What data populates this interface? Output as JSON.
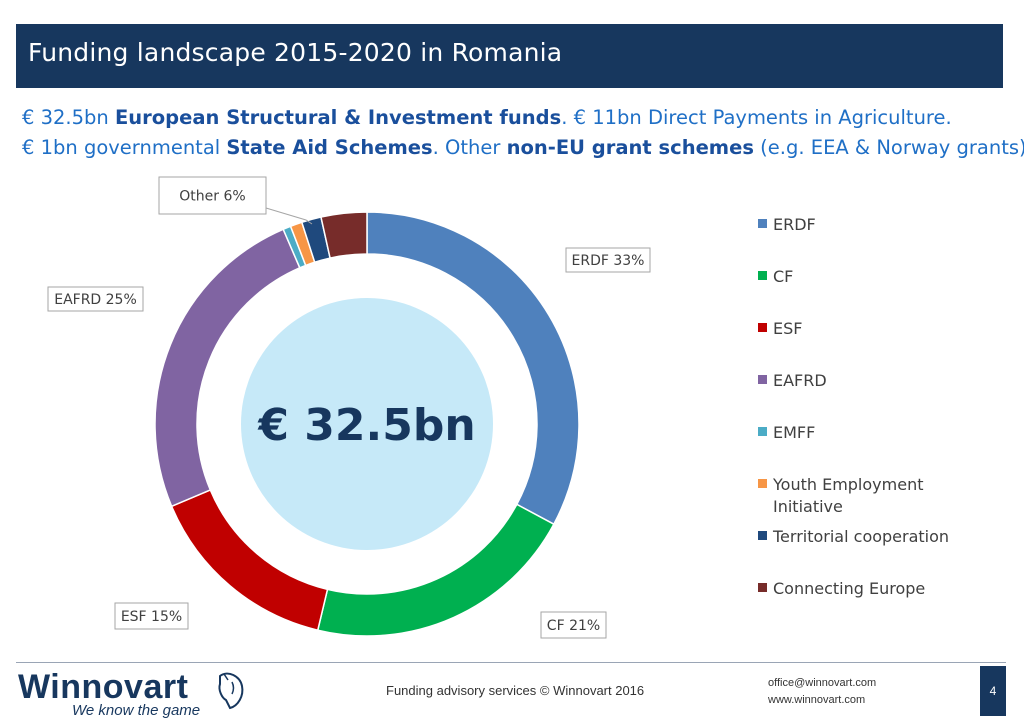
{
  "header": {
    "title": "Funding landscape 2015-2020 in Romania"
  },
  "subtitle": {
    "line1": [
      {
        "text": "€ 32.5bn ",
        "bold": false
      },
      {
        "text": "European Structural & Investment funds",
        "bold": true
      },
      {
        "text": ". € 11bn Direct Payments in Agriculture.",
        "bold": false
      }
    ],
    "line2": [
      {
        "text": "€ 1bn governmental ",
        "bold": false
      },
      {
        "text": "State Aid Schemes",
        "bold": true
      },
      {
        "text": ". Other ",
        "bold": false
      },
      {
        "text": "non-EU grant schemes",
        "bold": true
      },
      {
        "text": " (e.g.  EEA & Norway grants)",
        "bold": false
      }
    ]
  },
  "chart_data": {
    "type": "pie",
    "center_label": "€ 32.5bn",
    "series": [
      {
        "name": "ERDF",
        "value": 33,
        "color": "#4f81bd"
      },
      {
        "name": "CF",
        "value": 21,
        "color": "#00b050"
      },
      {
        "name": "ESF",
        "value": 15,
        "color": "#c00000"
      },
      {
        "name": "EAFRD",
        "value": 25,
        "color": "#8064a2"
      },
      {
        "name": "EMFF",
        "value": 0.6,
        "color": "#4bacc6"
      },
      {
        "name": "Youth Employment Initiative",
        "value": 0.9,
        "color": "#f79646"
      },
      {
        "name": "Territorial cooperation",
        "value": 1.5,
        "color": "#1f497d"
      },
      {
        "name": "Connecting Europe",
        "value": 3.5,
        "color": "#772c2a"
      }
    ],
    "data_labels": [
      {
        "text": "ERDF 33%"
      },
      {
        "text": "CF 21%"
      },
      {
        "text": "ESF 15%"
      },
      {
        "text": "EAFRD 25%"
      },
      {
        "text": "Other 6%"
      }
    ],
    "legend": {
      "position": "right"
    }
  },
  "footer": {
    "brand": "Winnovart",
    "tagline": "We know the game",
    "center": "Funding advisory services © Winnovart 2016",
    "email": "office@winnovart.com",
    "website": "www.winnovart.com",
    "page": "4"
  }
}
